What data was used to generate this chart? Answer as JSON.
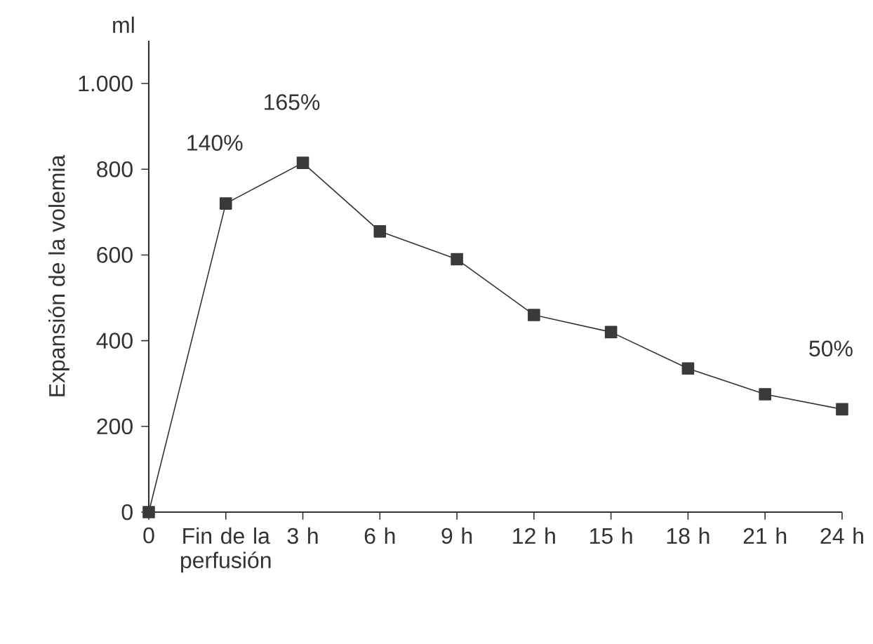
{
  "chart_data": {
    "type": "line",
    "ylabel": "Expansión de la volemia",
    "categories": [
      "0",
      "Fin de la perfusión",
      "3 h",
      "6 h",
      "9 h",
      "12 h",
      "15 h",
      "18 h",
      "21 h",
      "24 h"
    ],
    "values": [
      0,
      720,
      815,
      655,
      590,
      460,
      420,
      335,
      275,
      240
    ],
    "color": "#3a3a3a",
    "marker": "square",
    "line_style": "solid",
    "grid": false,
    "ylim": [
      0,
      1100
    ],
    "yticks": [
      0,
      200,
      400,
      600,
      800,
      {
        "value": 1000,
        "label": "1.000"
      }
    ],
    "annotations": [
      "ml",
      {
        "text": "140%",
        "x": "Fin de la perfusión",
        "y": 720
      },
      {
        "text": "165%",
        "x": "3 h",
        "y": 815
      },
      {
        "text": "50%",
        "x": "24 h",
        "y": 240
      }
    ]
  }
}
